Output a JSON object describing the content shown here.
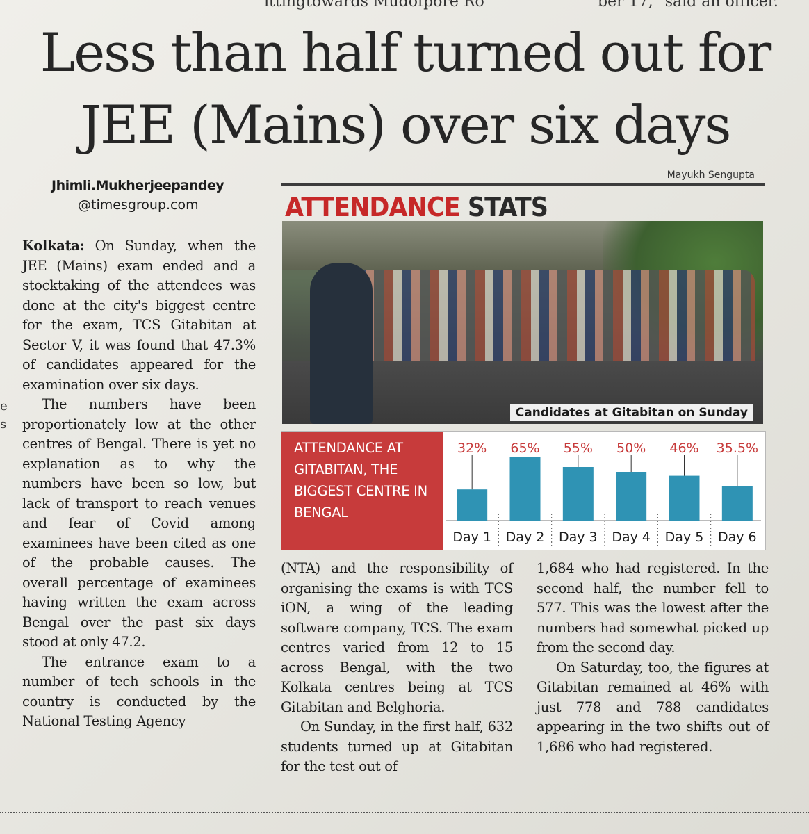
{
  "top_strip": {
    "left_fragment": "ittingtowards Mudofpore Ro",
    "right_fragment": "ber 17,\" said an officer."
  },
  "headline": {
    "line1": "Less than half turned out for",
    "line2": "JEE (Mains) over six days"
  },
  "byline": {
    "name": "Jhimli.Mukherjeepandey",
    "email": "@timesgroup.com"
  },
  "photo_credit": "Mayukh Sengupta",
  "stats_heading": {
    "highlight": "ATTENDANCE",
    "rest": "STATS"
  },
  "photo_caption": "Candidates at Gitabitan on Sunday",
  "margin_letters": [
    "e",
    "s"
  ],
  "chart_data": {
    "type": "bar",
    "title": "ATTENDANCE AT GITABITAN, THE BIGGEST CENTRE IN BENGAL",
    "categories": [
      "Day 1",
      "Day 2",
      "Day 3",
      "Day 4",
      "Day 5",
      "Day 6"
    ],
    "values": [
      32,
      65,
      55,
      50,
      46,
      35.5
    ],
    "data_labels": [
      "32%",
      "65%",
      "55%",
      "50%",
      "46%",
      "35.5%"
    ],
    "unit": "%",
    "ylim": [
      0,
      70
    ],
    "grid": false,
    "colors": {
      "bar": "#2f93b4",
      "label": "#c73b3b",
      "panel": "#c73b3b"
    }
  },
  "article": {
    "dateline": "Kolkata:",
    "col1": [
      "On Sunday, when the JEE (Mains) exam ended and a stocktaking of the attendees was done at the city's biggest centre for the exam, TCS Gitabitan at Sector V, it was found that 47.3% of candidates appeared for the examination over six days.",
      "The numbers have been proportionately low at the other centres of Bengal. There is yet no explanation as to why the numbers have been so low, but lack of transport to reach venues and fear of Covid among examinees have been cited as one of the probable causes. The overall percentage of examinees having written the exam across Bengal over the past six days stood at only 47.2.",
      "The entrance exam to a number of tech schools in the country is conducted by the National Testing Agency"
    ],
    "col2": [
      "(NTA) and the responsibility of organising the exams is with TCS iON, a wing of the leading software company, TCS. The exam centres varied from 12 to 15 across Bengal, with the two Kolkata centres being at TCS Gitabitan and Belghoria.",
      "On Sunday, in the first half, 632 students turned up at Gitabitan for the test out of"
    ],
    "col3": [
      "1,684 who had registered. In the second half, the number fell to 577. This was the lowest after the numbers had somewhat picked up from the second day.",
      "On Saturday, too, the figures at Gitabitan remained at 46% with just 778 and 788 candidates appearing in the two shifts out of 1,686 who had registered."
    ]
  }
}
